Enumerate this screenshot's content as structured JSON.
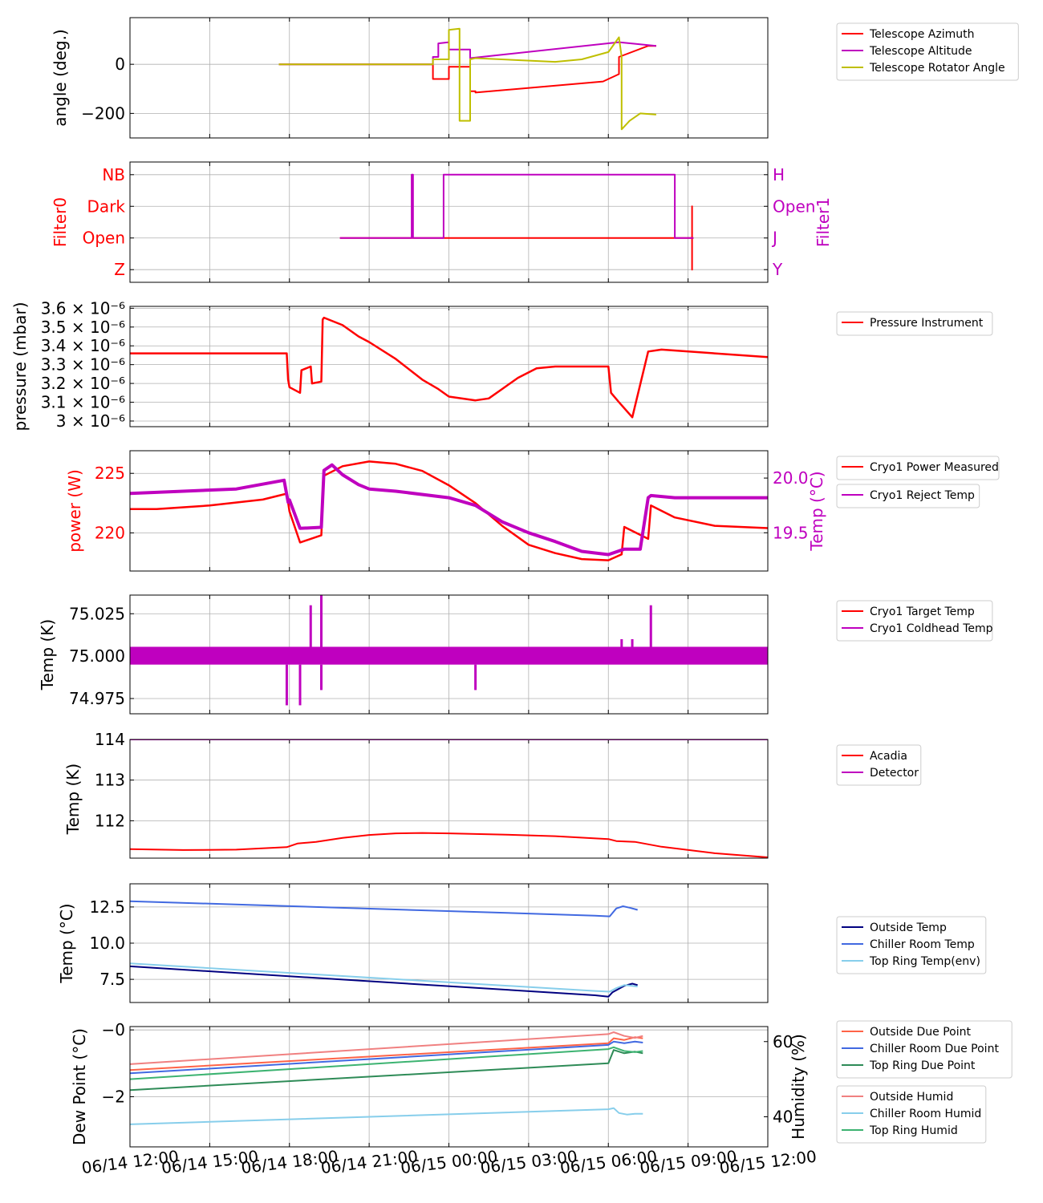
{
  "figure": {
    "x_ticks": [
      "06/14 12:00",
      "06/14 15:00",
      "06/14 18:00",
      "06/14 21:00",
      "06/15 00:00",
      "06/15 03:00",
      "06/15 06:00",
      "06/15 09:00",
      "06/15 12:00"
    ],
    "x_tick_hours": [
      0,
      3,
      6,
      9,
      12,
      15,
      18,
      21,
      24
    ],
    "x_range_hours": [
      0,
      24
    ]
  },
  "chart_data": [
    {
      "id": "telescope",
      "type": "line",
      "ylabel": "angle (deg.)",
      "ylim": [
        -300,
        190
      ],
      "yticks": [
        {
          "v": 0,
          "label": "0"
        },
        {
          "v": -200,
          "label": "−200"
        }
      ],
      "grid": true,
      "legend": "right",
      "series": [
        {
          "name": "Telescope Azimuth",
          "color": "#ff0000",
          "x": [
            5.6,
            11.4,
            11.4,
            12.0,
            12.0,
            12.8,
            12.8,
            13.0,
            13.0,
            17.8,
            18.4,
            18.4,
            19.5,
            19.8
          ],
          "y": [
            0,
            0,
            -60,
            -60,
            -10,
            -10,
            -110,
            -110,
            -115,
            -70,
            -40,
            30,
            75,
            75
          ]
        },
        {
          "name": "Telescope Altitude",
          "color": "#bf00bf",
          "x": [
            5.6,
            11.4,
            11.4,
            11.6,
            11.6,
            12.0,
            12.0,
            12.8,
            12.8,
            18.4,
            19.8
          ],
          "y": [
            0,
            0,
            30,
            30,
            85,
            90,
            60,
            60,
            25,
            90,
            75
          ]
        },
        {
          "name": "Telescope Rotator Angle",
          "color": "#bfbf00",
          "x": [
            5.6,
            11.4,
            11.4,
            12.0,
            12.0,
            12.4,
            12.4,
            12.8,
            12.8,
            13.0,
            16.0,
            17.0,
            18.0,
            18.4,
            18.5,
            18.5,
            18.8,
            19.2,
            19.8
          ],
          "y": [
            0,
            0,
            20,
            20,
            140,
            145,
            -230,
            -230,
            20,
            25,
            10,
            20,
            50,
            110,
            30,
            -265,
            -230,
            -200,
            -205
          ]
        }
      ]
    },
    {
      "id": "filters",
      "type": "line",
      "ylabel": "Filter0",
      "ylabel_right": "Filter1",
      "yticks": [
        {
          "v": 3,
          "label": "NB"
        },
        {
          "v": 2,
          "label": "Dark"
        },
        {
          "v": 1,
          "label": "Open"
        },
        {
          "v": 0,
          "label": "Z"
        }
      ],
      "yticks_right": [
        {
          "v": 3,
          "label": "H"
        },
        {
          "v": 2,
          "label": "Open"
        },
        {
          "v": 1,
          "label": "J"
        },
        {
          "v": 0,
          "label": "Y"
        }
      ],
      "ylim": [
        -0.4,
        3.4
      ],
      "grid": true,
      "series": [
        {
          "name": "Filter0",
          "axis": "left",
          "color": "#ff0000",
          "x": [
            7.9,
            21.15,
            21.15,
            21.15,
            21.15,
            21.2
          ],
          "y": [
            1,
            1,
            2,
            0,
            1,
            1
          ]
        },
        {
          "name": "Filter1",
          "axis": "right",
          "color": "#bf00bf",
          "x": [
            7.9,
            10.6,
            10.6,
            10.65,
            10.65,
            11.8,
            11.8,
            20.5,
            20.5,
            21.2
          ],
          "y": [
            1,
            1,
            3,
            3,
            1,
            1,
            3,
            3,
            1,
            1
          ]
        }
      ]
    },
    {
      "id": "pressure",
      "type": "line",
      "ylabel": "pressure (mbar)",
      "ylim": [
        2.97,
        3.61
      ],
      "yticks": [
        {
          "v": 3.6,
          "label": "3.6 × 10⁻⁶"
        },
        {
          "v": 3.5,
          "label": "3.5 × 10⁻⁶"
        },
        {
          "v": 3.4,
          "label": "3.4 × 10⁻⁶"
        },
        {
          "v": 3.3,
          "label": "3.3 × 10⁻⁶"
        },
        {
          "v": 3.2,
          "label": "3.2 × 10⁻⁶"
        },
        {
          "v": 3.1,
          "label": "3.1 × 10⁻⁶"
        },
        {
          "v": 3.0,
          "label": "3 × 10⁻⁶"
        }
      ],
      "grid": true,
      "legend": "right",
      "series": [
        {
          "name": "Pressure Instrument",
          "color": "#ff0000",
          "x": [
            0,
            5.9,
            5.95,
            6.0,
            6.4,
            6.45,
            6.8,
            6.85,
            7.2,
            7.25,
            7.3,
            8.0,
            8.6,
            9.0,
            10.0,
            11.0,
            11.6,
            12.0,
            13.0,
            13.5,
            14.0,
            14.6,
            15.3,
            16.0,
            17.0,
            18.0,
            18.1,
            18.4,
            18.9,
            19.5,
            20.0,
            24
          ],
          "y": [
            3.36,
            3.36,
            3.22,
            3.18,
            3.15,
            3.27,
            3.29,
            3.2,
            3.21,
            3.54,
            3.55,
            3.51,
            3.45,
            3.42,
            3.33,
            3.22,
            3.17,
            3.13,
            3.11,
            3.12,
            3.17,
            3.23,
            3.28,
            3.29,
            3.29,
            3.29,
            3.15,
            3.1,
            3.02,
            3.37,
            3.38,
            3.34
          ]
        }
      ]
    },
    {
      "id": "cryo_power",
      "type": "line",
      "ylabel": "power (W)",
      "ylabel_right": "Temp (°C)",
      "ylim": [
        216.8,
        226.9
      ],
      "ylim_right": [
        19.15,
        20.25
      ],
      "yticks": [
        {
          "v": 225,
          "label": "225"
        },
        {
          "v": 220,
          "label": "220"
        }
      ],
      "yticks_right": [
        {
          "v": 20.0,
          "label": "20.0"
        },
        {
          "v": 19.5,
          "label": "19.5"
        }
      ],
      "grid": true,
      "legend": "right",
      "series": [
        {
          "name": "Cryo1 Power Measured",
          "axis": "left",
          "color": "#ff0000",
          "x": [
            0,
            1.0,
            3.0,
            5.0,
            5.9,
            6.0,
            6.4,
            7.2,
            7.3,
            8.0,
            9.0,
            10.0,
            11.0,
            12.0,
            13.0,
            14.0,
            15.0,
            16.0,
            17.0,
            18.0,
            18.5,
            18.6,
            19.5,
            19.6,
            20.5,
            22.0,
            24
          ],
          "y": [
            222,
            222,
            222.3,
            222.8,
            223.3,
            221.8,
            219.2,
            219.8,
            224.8,
            225.6,
            226.0,
            225.8,
            225.2,
            224,
            222.5,
            220.6,
            219.0,
            218.3,
            217.8,
            217.7,
            218.2,
            220.5,
            219.5,
            222.3,
            221.3,
            220.6,
            220.4
          ]
        },
        {
          "name": "Cryo1 Reject Temp",
          "axis": "right",
          "color": "#bf00bf",
          "x": [
            0,
            2.0,
            4.0,
            5.8,
            5.95,
            6.0,
            6.4,
            7.2,
            7.3,
            7.6,
            8.0,
            8.6,
            9.0,
            10.0,
            12.0,
            13.0,
            14.0,
            15.0,
            16.0,
            17.0,
            18.0,
            18.6,
            19.2,
            19.5,
            19.6,
            20.5,
            22.0,
            24
          ],
          "y": [
            19.86,
            19.88,
            19.9,
            19.98,
            19.78,
            19.8,
            19.54,
            19.55,
            20.07,
            20.12,
            20.03,
            19.94,
            19.9,
            19.88,
            19.82,
            19.75,
            19.6,
            19.5,
            19.42,
            19.33,
            19.3,
            19.35,
            19.35,
            19.82,
            19.84,
            19.82,
            19.82,
            19.82
          ]
        }
      ]
    },
    {
      "id": "cryo_temp",
      "type": "line",
      "ylabel": "Temp (K)",
      "ylim": [
        74.966,
        75.036
      ],
      "yticks": [
        {
          "v": 75.025,
          "label": "75.025"
        },
        {
          "v": 75.0,
          "label": "75.000"
        },
        {
          "v": 74.975,
          "label": "74.975"
        }
      ],
      "grid": true,
      "legend": "right",
      "series": [
        {
          "name": "Cryo1 Target Temp",
          "color": "#ff0000",
          "x": [
            0,
            24
          ],
          "y": [
            75.0,
            75.0
          ]
        },
        {
          "name": "Cryo1 Coldhead Temp",
          "color": "#bf00bf",
          "band": [
            74.995,
            75.0055
          ],
          "spikes": [
            {
              "x": 5.9,
              "y": 74.971
            },
            {
              "x": 6.4,
              "y": 74.971
            },
            {
              "x": 6.8,
              "y": 75.03
            },
            {
              "x": 7.2,
              "y": 75.036
            },
            {
              "x": 7.2,
              "y": 74.98
            },
            {
              "x": 13.0,
              "y": 74.98
            },
            {
              "x": 18.5,
              "y": 75.01
            },
            {
              "x": 18.9,
              "y": 75.01
            },
            {
              "x": 19.6,
              "y": 75.03
            }
          ]
        }
      ]
    },
    {
      "id": "acadia_detector",
      "type": "line",
      "ylabel": "Temp (K)",
      "ylim": [
        111.08,
        114.0
      ],
      "yticks": [
        {
          "v": 114,
          "label": "114"
        },
        {
          "v": 113,
          "label": "113"
        },
        {
          "v": 112,
          "label": "112"
        }
      ],
      "grid": true,
      "legend": "right",
      "series": [
        {
          "name": "Acadia",
          "color": "#ff0000",
          "x": [
            0,
            2,
            4,
            5.9,
            6.3,
            7.0,
            8.0,
            9.0,
            10.0,
            11.0,
            12.0,
            14.0,
            16.0,
            18.0,
            18.3,
            19.0,
            20.0,
            22.0,
            24
          ],
          "y": [
            111.3,
            111.28,
            111.29,
            111.35,
            111.44,
            111.48,
            111.58,
            111.65,
            111.69,
            111.7,
            111.69,
            111.66,
            111.62,
            111.55,
            111.5,
            111.48,
            111.36,
            111.2,
            111.1
          ]
        },
        {
          "name": "Detector",
          "color": "#bf00bf",
          "x": [
            0,
            24
          ],
          "y": [
            114.0,
            114.0
          ]
        }
      ]
    },
    {
      "id": "env_temp",
      "type": "line",
      "ylabel": "Temp (°C)",
      "ylim": [
        5.9,
        14.1
      ],
      "yticks": [
        {
          "v": 12.5,
          "label": "12.5"
        },
        {
          "v": 10.0,
          "label": "10.0"
        },
        {
          "v": 7.5,
          "label": "7.5"
        }
      ],
      "grid": true,
      "legend": "right",
      "series": [
        {
          "name": "Outside Temp",
          "color": "#000080",
          "x": [
            0,
            17.5,
            18.0,
            18.15,
            18.6,
            18.9,
            19.1
          ],
          "y": [
            8.4,
            6.4,
            6.3,
            6.6,
            7.05,
            7.2,
            7.1
          ]
        },
        {
          "name": "Chiller Room Temp",
          "color": "#4169e1",
          "x": [
            0,
            17.5,
            18.05,
            18.3,
            18.55,
            18.8,
            19.1
          ],
          "y": [
            12.9,
            11.9,
            11.85,
            12.4,
            12.55,
            12.45,
            12.3
          ]
        },
        {
          "name": "Top Ring Temp(env)",
          "color": "#87ceeb",
          "x": [
            0,
            17.5,
            18.05,
            18.3,
            18.6,
            18.9,
            19.1
          ],
          "y": [
            8.6,
            6.7,
            6.65,
            6.9,
            7.1,
            7.05,
            7.0
          ]
        }
      ]
    },
    {
      "id": "dewpoint",
      "type": "line",
      "ylabel": "Dew Point (°C)",
      "ylabel_right": "Humidity (%)",
      "ylim": [
        -3.5,
        0.1
      ],
      "ylim_right": [
        32,
        64
      ],
      "yticks": [
        {
          "v": 0,
          "label": "−0"
        },
        {
          "v": -2,
          "label": "−2"
        }
      ],
      "yticks_right": [
        {
          "v": 60,
          "label": "60"
        },
        {
          "v": 40,
          "label": "40"
        }
      ],
      "grid": true,
      "legend": "right",
      "series": [
        {
          "name": "Outside Due Point",
          "axis": "left",
          "color": "#ff6347",
          "x": [
            0,
            18.0,
            18.2,
            18.6,
            19.0,
            19.3
          ],
          "y": [
            -1.2,
            -0.4,
            -0.25,
            -0.3,
            -0.22,
            -0.25
          ]
        },
        {
          "name": "Chiller Room Due Point",
          "axis": "left",
          "color": "#4169e1",
          "x": [
            0,
            18.0,
            18.2,
            18.6,
            19.0,
            19.3
          ],
          "y": [
            -1.3,
            -0.45,
            -0.35,
            -0.4,
            -0.35,
            -0.38
          ]
        },
        {
          "name": "Top Ring Due Point",
          "axis": "left",
          "color": "#2e8b57",
          "x": [
            0,
            18.0,
            18.2,
            18.6,
            19.0,
            19.3
          ],
          "y": [
            -1.8,
            -1.0,
            -0.6,
            -0.7,
            -0.65,
            -0.7
          ]
        },
        {
          "name": "Outside Humid",
          "axis": "right",
          "color": "#f08080",
          "x": [
            0,
            18.0,
            18.2,
            18.6,
            19.0,
            19.3
          ],
          "y": [
            54,
            62,
            62.5,
            61.5,
            61,
            61.5
          ]
        },
        {
          "name": "Chiller Room Humid",
          "axis": "right",
          "color": "#87ceeb",
          "x": [
            0,
            18.0,
            18.2,
            18.4,
            18.7,
            19.0,
            19.3
          ],
          "y": [
            38,
            42,
            42.3,
            41,
            40.6,
            40.8,
            40.8
          ]
        },
        {
          "name": "Top Ring Humid",
          "axis": "right",
          "color": "#3cb371",
          "x": [
            0,
            18.0,
            18.2,
            18.6,
            19.0,
            19.3
          ],
          "y": [
            50,
            58,
            58.5,
            57.5,
            57.2,
            57.5
          ]
        }
      ]
    }
  ]
}
